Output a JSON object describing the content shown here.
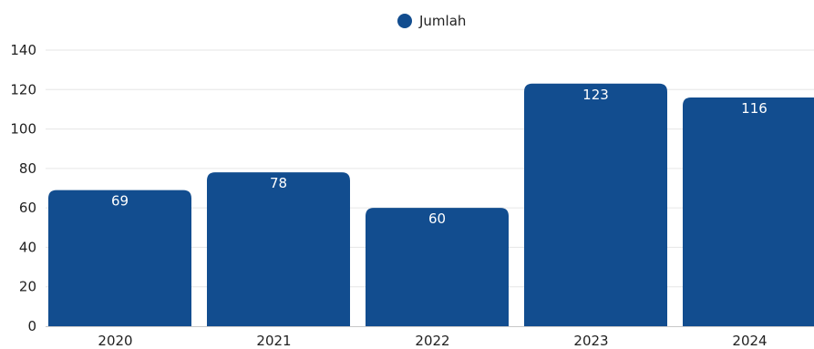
{
  "chart_data": {
    "type": "bar",
    "categories": [
      "2020",
      "2021",
      "2022",
      "2023",
      "2024"
    ],
    "series": [
      {
        "name": "Jumlah",
        "values": [
          69,
          78,
          60,
          123,
          116
        ]
      }
    ],
    "ylim": [
      0,
      140
    ],
    "yticks": [
      0,
      20,
      40,
      60,
      80,
      100,
      120,
      140
    ],
    "grid": true,
    "legend_position": "top-center",
    "colors": {
      "bar": "#124d8f",
      "grid": "#e6e6e6",
      "axis": "#c8c8c8"
    }
  }
}
